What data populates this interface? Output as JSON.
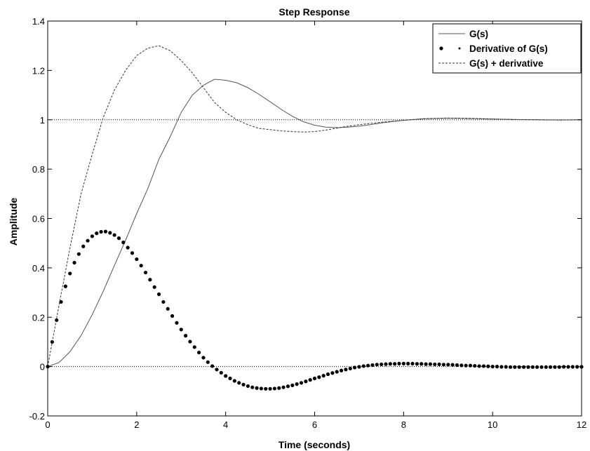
{
  "chart_data": {
    "type": "line",
    "title": "Step Response",
    "xlabel": "Time (seconds)",
    "ylabel": "Amplitude",
    "xlim": [
      0,
      12
    ],
    "ylim": [
      -0.2,
      1.4
    ],
    "xticks": [
      "0",
      "2",
      "4",
      "6",
      "8",
      "10",
      "12"
    ],
    "yticks": [
      "-0.2",
      "0",
      "0.2",
      "0.4",
      "0.6",
      "0.8",
      "1",
      "1.2",
      "1.4"
    ],
    "grid": "reference lines at y=0 and y=1",
    "legend_position": "top-right",
    "series": [
      {
        "name": "G(s)",
        "style": "solid",
        "color": "#555555",
        "x": [
          0,
          0.25,
          0.5,
          0.75,
          1,
          1.25,
          1.5,
          1.75,
          2,
          2.25,
          2.5,
          2.75,
          3,
          3.25,
          3.5,
          3.75,
          4,
          4.25,
          4.5,
          4.75,
          5,
          5.25,
          5.5,
          5.75,
          6,
          6.25,
          6.5,
          6.75,
          7,
          7.25,
          7.5,
          7.75,
          8,
          8.5,
          9,
          9.5,
          10,
          10.5,
          11,
          11.5,
          12
        ],
        "y": [
          0,
          0.016,
          0.06,
          0.126,
          0.21,
          0.306,
          0.41,
          0.512,
          0.62,
          0.721,
          0.84,
          0.93,
          1.03,
          1.1,
          1.14,
          1.164,
          1.16,
          1.15,
          1.13,
          1.103,
          1.073,
          1.042,
          1.014,
          0.992,
          0.978,
          0.97,
          0.968,
          0.97,
          0.974,
          0.98,
          0.987,
          0.993,
          0.998,
          1.004,
          1.006,
          1.005,
          1.003,
          1.001,
          1.0,
          0.999,
          1.0
        ]
      },
      {
        "name": "Derivative of G(s)",
        "style": "markers",
        "color": "#000000",
        "x": [
          0,
          0.1,
          0.2,
          0.3,
          0.4,
          0.5,
          0.6,
          0.7,
          0.8,
          0.9,
          1.0,
          1.1,
          1.2,
          1.3,
          1.4,
          1.5,
          1.6,
          1.7,
          1.8,
          1.9,
          2.0,
          2.1,
          2.2,
          2.3,
          2.4,
          2.5,
          2.6,
          2.7,
          2.8,
          2.9,
          3.0,
          3.1,
          3.2,
          3.3,
          3.4,
          3.5,
          3.6,
          3.7,
          3.8,
          3.9,
          4.0,
          4.1,
          4.2,
          4.3,
          4.4,
          4.5,
          4.6,
          4.7,
          4.8,
          4.9,
          5.0,
          5.1,
          5.2,
          5.3,
          5.4,
          5.5,
          5.6,
          5.7,
          5.8,
          5.9,
          6.0,
          6.1,
          6.2,
          6.3,
          6.4,
          6.5,
          6.6,
          6.7,
          6.8,
          6.9,
          7.0,
          7.1,
          7.2,
          7.3,
          7.4,
          7.5,
          7.6,
          7.7,
          7.8,
          7.9,
          8.0,
          8.1,
          8.2,
          8.3,
          8.4,
          8.5,
          8.6,
          8.7,
          8.8,
          8.9,
          9.0,
          9.1,
          9.2,
          9.3,
          9.4,
          9.5,
          9.6,
          9.7,
          9.8,
          9.9,
          10.0,
          10.1,
          10.2,
          10.3,
          10.4,
          10.5,
          10.6,
          10.7,
          10.8,
          10.9,
          11.0,
          11.1,
          11.2,
          11.3,
          11.4,
          11.5,
          11.6,
          11.7,
          11.8,
          11.9,
          12.0
        ],
        "y": [
          0,
          0.1,
          0.188,
          0.262,
          0.325,
          0.377,
          0.421,
          0.456,
          0.487,
          0.51,
          0.528,
          0.54,
          0.546,
          0.547,
          0.542,
          0.533,
          0.52,
          0.503,
          0.482,
          0.46,
          0.435,
          0.409,
          0.381,
          0.352,
          0.322,
          0.293,
          0.262,
          0.234,
          0.205,
          0.177,
          0.15,
          0.125,
          0.101,
          0.079,
          0.057,
          0.036,
          0.018,
          0.002,
          -0.012,
          -0.025,
          -0.038,
          -0.048,
          -0.058,
          -0.066,
          -0.073,
          -0.079,
          -0.084,
          -0.087,
          -0.089,
          -0.09,
          -0.09,
          -0.089,
          -0.087,
          -0.084,
          -0.08,
          -0.076,
          -0.071,
          -0.066,
          -0.06,
          -0.054,
          -0.048,
          -0.043,
          -0.037,
          -0.031,
          -0.026,
          -0.021,
          -0.016,
          -0.012,
          -0.008,
          -0.004,
          -0.001,
          0.002,
          0.004,
          0.006,
          0.008,
          0.009,
          0.01,
          0.011,
          0.011,
          0.012,
          0.012,
          0.012,
          0.012,
          0.011,
          0.011,
          0.01,
          0.01,
          0.009,
          0.009,
          0.008,
          0.008,
          0.007,
          0.006,
          0.005,
          0.004,
          0.004,
          0.003,
          0.002,
          0.002,
          0.001,
          0.0,
          0.0,
          -0.001,
          -0.001,
          -0.002,
          -0.002,
          -0.002,
          -0.002,
          -0.002,
          -0.002,
          -0.002,
          -0.002,
          -0.002,
          -0.002,
          -0.002,
          -0.002,
          -0.001,
          -0.001,
          -0.001,
          -0.001,
          -0.001
        ]
      },
      {
        "name": "G(s) + derivative",
        "style": "dashed",
        "color": "#333333",
        "x": [
          0,
          0.25,
          0.5,
          0.75,
          1,
          1.25,
          1.5,
          1.75,
          2,
          2.25,
          2.5,
          2.75,
          3,
          3.25,
          3.5,
          3.75,
          4,
          4.25,
          4.5,
          4.75,
          5,
          5.25,
          5.5,
          5.75,
          6,
          6.25,
          6.5,
          6.75,
          7,
          7.25,
          7.5,
          7.75,
          8,
          8.5,
          9,
          9.5,
          10,
          10.5,
          11,
          11.5,
          12
        ],
        "y": [
          0,
          0.245,
          0.48,
          0.7,
          0.86,
          1.01,
          1.12,
          1.2,
          1.26,
          1.29,
          1.3,
          1.28,
          1.24,
          1.19,
          1.13,
          1.07,
          1.03,
          1.0,
          0.98,
          0.965,
          0.96,
          0.955,
          0.952,
          0.95,
          0.952,
          0.958,
          0.966,
          0.974,
          0.98,
          0.985,
          0.99,
          0.994,
          0.998,
          1.005,
          1.007,
          1.006,
          1.003,
          1.001,
          1.0,
          0.999,
          1.0
        ]
      }
    ]
  }
}
